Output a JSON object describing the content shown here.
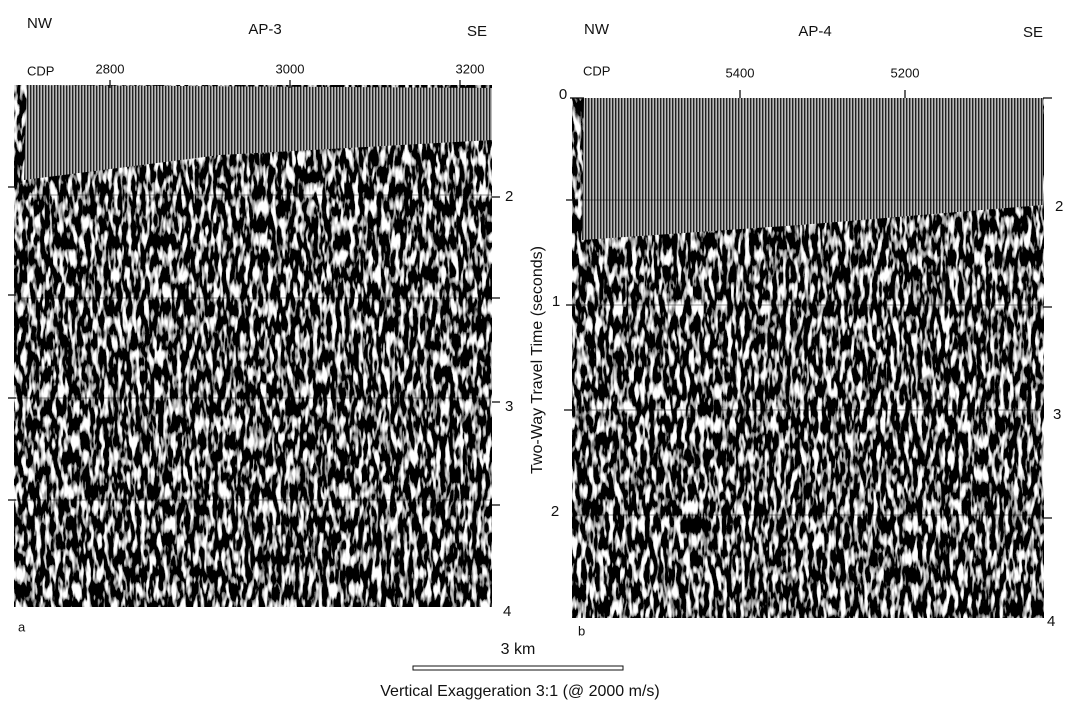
{
  "panels": [
    {
      "label": "a",
      "line": "AP-3",
      "left_dir": "NW",
      "right_dir": "SE",
      "cdp_label": "CDP",
      "cdp_ticks": [
        2800,
        3000,
        3200
      ],
      "right_ticks": [
        2,
        3,
        4
      ]
    },
    {
      "label": "b",
      "line": "AP-4",
      "left_dir": "NW",
      "right_dir": "SE",
      "cdp_label": "CDP",
      "cdp_ticks": [
        5400,
        5200
      ],
      "left_ticks": [
        0,
        1,
        2
      ],
      "right_ticks": [
        2,
        3,
        4
      ]
    }
  ],
  "time_axis_label": "Two-Way Travel Time (seconds)",
  "scale_bar": "3 km",
  "caption": "Vertical Exaggeration 3:1 (@ 2000 m/s)"
}
